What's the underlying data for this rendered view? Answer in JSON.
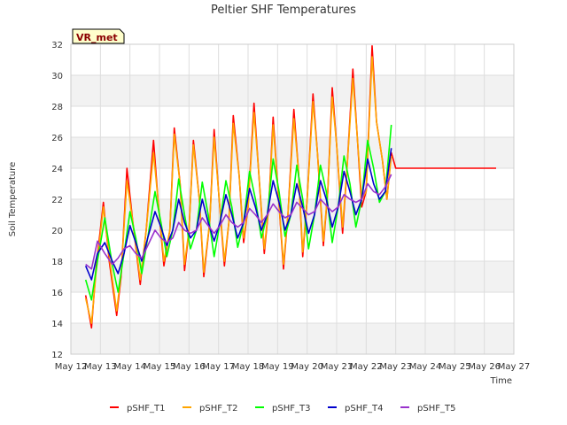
{
  "chart_data": {
    "type": "line",
    "title": "Peltier SHF Temperatures",
    "xlabel": "Time",
    "ylabel": "Soil Temperature",
    "ylim": [
      12,
      32
    ],
    "xlim": [
      12,
      27
    ],
    "yticks": [
      12,
      14,
      16,
      18,
      20,
      22,
      24,
      26,
      28,
      30,
      32
    ],
    "xticks": [
      {
        "value": 12,
        "label": "May 12"
      },
      {
        "value": 13,
        "label": "May 13"
      },
      {
        "value": 14,
        "label": "May 14"
      },
      {
        "value": 15,
        "label": "May 15"
      },
      {
        "value": 16,
        "label": "May 16"
      },
      {
        "value": 17,
        "label": "May 17"
      },
      {
        "value": 18,
        "label": "May 18"
      },
      {
        "value": 19,
        "label": "May 19"
      },
      {
        "value": 20,
        "label": "May 20"
      },
      {
        "value": 21,
        "label": "May 21"
      },
      {
        "value": 22,
        "label": "May 22"
      },
      {
        "value": 23,
        "label": "May 23"
      },
      {
        "value": 24,
        "label": "May 24"
      },
      {
        "value": 25,
        "label": "May 25"
      },
      {
        "value": 26,
        "label": "May 26"
      },
      {
        "value": 27,
        "label": "May 27"
      }
    ],
    "grid": true,
    "banded_background": true,
    "legend_position": "bottom",
    "annotation": "VR_met",
    "series": [
      {
        "name": "pSHF_T1",
        "color": "#ff0000",
        "x": [
          12.5,
          12.7,
          12.85,
          13.1,
          13.3,
          13.55,
          13.7,
          13.9,
          14.1,
          14.35,
          14.55,
          14.8,
          14.95,
          15.15,
          15.35,
          15.5,
          15.7,
          15.85,
          16.0,
          16.15,
          16.35,
          16.5,
          16.7,
          16.85,
          17.0,
          17.2,
          17.35,
          17.5,
          17.7,
          17.85,
          18.0,
          18.2,
          18.35,
          18.55,
          18.7,
          18.85,
          19.0,
          19.2,
          19.35,
          19.55,
          19.7,
          19.85,
          20.0,
          20.2,
          20.35,
          20.55,
          20.7,
          20.85,
          21.0,
          21.2,
          21.35,
          21.55,
          21.7,
          21.85,
          22.0,
          22.2,
          22.35,
          22.55,
          22.7,
          22.85,
          23.0,
          23.2,
          23.35,
          23.55,
          23.7,
          23.85,
          24.0,
          24.2,
          24.35,
          24.55,
          24.75,
          24.9,
          25.05,
          25.25,
          25.4,
          25.55,
          25.8,
          25.95,
          26.1,
          26.25,
          26.4
        ],
        "y": [
          15.8,
          13.7,
          17.5,
          21.8,
          18.0,
          14.5,
          17.0,
          24.0,
          20.5,
          16.5,
          20.0,
          25.8,
          22.0,
          17.7,
          20.0,
          26.6,
          23.0,
          17.4,
          20.0,
          25.8,
          22.0,
          17.0,
          20.5,
          26.5,
          22.5,
          17.7,
          20.5,
          27.4,
          23.5,
          19.2,
          21.5,
          28.2,
          24.0,
          18.5,
          21.5,
          27.3,
          23.0,
          17.5,
          21.0,
          27.8,
          24.0,
          18.3,
          22.0,
          28.8,
          25.0,
          19.0,
          22.5,
          29.2,
          25.5,
          19.8,
          24.0,
          30.4,
          26.0,
          21.5,
          22.5,
          31.9,
          27.0,
          24.5,
          22.0,
          25.0,
          24.0,
          24.0,
          24.0,
          24.0,
          24.0,
          24.0,
          24.0,
          24.0,
          24.0,
          24.0,
          24.0,
          24.0,
          24.0,
          24.0,
          24.0,
          24.0,
          24.0,
          24.0,
          24.0,
          24.0,
          24.0
        ]
      },
      {
        "name": "pSHF_T2",
        "color": "#ffa500",
        "x": [
          12.5,
          12.7,
          12.85,
          13.1,
          13.3,
          13.55,
          13.7,
          13.9,
          14.1,
          14.35,
          14.55,
          14.8,
          14.95,
          15.15,
          15.35,
          15.5,
          15.7,
          15.85,
          16.0,
          16.15,
          16.35,
          16.5,
          16.7,
          16.85,
          17.0,
          17.2,
          17.35,
          17.5,
          17.7,
          17.85,
          18.0,
          18.2,
          18.35,
          18.55,
          18.7,
          18.85,
          19.0,
          19.2,
          19.35,
          19.55,
          19.7,
          19.85,
          20.0,
          20.2,
          20.35,
          20.55,
          20.7,
          20.85,
          21.0,
          21.2,
          21.35,
          21.55,
          21.7,
          21.85,
          22.0,
          22.2,
          22.35,
          22.55,
          22.7,
          22.85
        ],
        "y": [
          15.6,
          14.0,
          17.2,
          21.5,
          18.3,
          14.8,
          17.2,
          23.2,
          20.5,
          16.8,
          20.0,
          25.0,
          22.0,
          18.0,
          20.0,
          26.2,
          23.0,
          17.8,
          20.0,
          25.5,
          22.0,
          17.3,
          20.5,
          26.0,
          22.5,
          18.0,
          20.5,
          26.9,
          23.5,
          19.5,
          21.5,
          27.6,
          24.0,
          18.8,
          21.5,
          26.8,
          23.0,
          17.8,
          21.0,
          27.2,
          24.0,
          18.6,
          22.0,
          28.3,
          25.0,
          19.3,
          22.5,
          28.6,
          25.5,
          20.2,
          24.0,
          29.8,
          26.0,
          22.0,
          22.5,
          31.2,
          27.0,
          24.5,
          22.0,
          24.8
        ]
      },
      {
        "name": "pSHF_T3",
        "color": "#00ff00",
        "x": [
          12.5,
          12.7,
          12.9,
          13.15,
          13.4,
          13.6,
          13.8,
          14.0,
          14.2,
          14.4,
          14.6,
          14.85,
          15.05,
          15.25,
          15.45,
          15.65,
          15.85,
          16.05,
          16.25,
          16.45,
          16.65,
          16.85,
          17.05,
          17.25,
          17.45,
          17.65,
          17.85,
          18.05,
          18.25,
          18.45,
          18.65,
          18.85,
          19.05,
          19.25,
          19.45,
          19.65,
          19.85,
          20.05,
          20.25,
          20.45,
          20.65,
          20.85,
          21.05,
          21.25,
          21.45,
          21.65,
          21.85,
          22.05,
          22.25,
          22.45,
          22.65,
          22.85
        ],
        "y": [
          16.8,
          15.5,
          18.0,
          20.8,
          17.8,
          16.0,
          18.5,
          21.2,
          19.5,
          17.2,
          19.5,
          22.5,
          20.5,
          18.3,
          20.0,
          23.3,
          21.0,
          18.8,
          20.0,
          23.1,
          21.0,
          18.3,
          20.5,
          23.2,
          21.5,
          18.9,
          20.5,
          23.8,
          22.0,
          19.5,
          21.0,
          24.6,
          22.5,
          19.6,
          21.0,
          24.2,
          22.0,
          18.8,
          21.0,
          24.2,
          22.5,
          19.2,
          21.5,
          24.8,
          23.0,
          20.2,
          22.0,
          25.8,
          24.0,
          21.8,
          22.5,
          26.8
        ]
      },
      {
        "name": "pSHF_T4",
        "color": "#0000cd",
        "x": [
          12.5,
          12.7,
          12.9,
          13.15,
          13.4,
          13.6,
          13.8,
          14.0,
          14.2,
          14.4,
          14.6,
          14.85,
          15.05,
          15.25,
          15.45,
          15.65,
          15.85,
          16.05,
          16.25,
          16.45,
          16.65,
          16.85,
          17.05,
          17.25,
          17.45,
          17.65,
          17.85,
          18.05,
          18.25,
          18.45,
          18.65,
          18.85,
          19.05,
          19.25,
          19.45,
          19.65,
          19.85,
          20.05,
          20.25,
          20.45,
          20.65,
          20.85,
          21.05,
          21.25,
          21.45,
          21.65,
          21.85,
          22.05,
          22.25,
          22.45,
          22.65,
          22.85
        ],
        "y": [
          17.7,
          16.8,
          18.5,
          19.2,
          18.0,
          17.2,
          18.5,
          20.3,
          19.2,
          18.0,
          19.5,
          21.2,
          20.2,
          19.0,
          20.0,
          22.0,
          20.5,
          19.5,
          20.0,
          22.0,
          20.5,
          19.3,
          20.5,
          22.3,
          21.0,
          19.5,
          20.5,
          22.7,
          21.5,
          20.0,
          21.0,
          23.2,
          21.8,
          20.0,
          21.0,
          23.0,
          21.5,
          19.8,
          21.0,
          23.2,
          22.0,
          20.2,
          21.5,
          23.8,
          22.5,
          21.0,
          22.0,
          24.6,
          23.0,
          22.0,
          22.5,
          25.3
        ]
      },
      {
        "name": "pSHF_T5",
        "color": "#9932cc",
        "x": [
          12.5,
          12.7,
          12.9,
          13.15,
          13.4,
          13.6,
          13.8,
          14.0,
          14.2,
          14.4,
          14.6,
          14.85,
          15.05,
          15.25,
          15.45,
          15.65,
          15.85,
          16.05,
          16.25,
          16.45,
          16.65,
          16.85,
          17.05,
          17.25,
          17.45,
          17.65,
          17.85,
          18.05,
          18.25,
          18.45,
          18.65,
          18.85,
          19.05,
          19.25,
          19.45,
          19.65,
          19.85,
          20.05,
          20.25,
          20.45,
          20.65,
          20.85,
          21.05,
          21.25,
          21.45,
          21.65,
          21.85,
          22.05,
          22.25,
          22.45,
          22.65,
          22.85
        ],
        "y": [
          17.8,
          17.5,
          19.3,
          18.5,
          17.8,
          18.2,
          18.8,
          19.0,
          18.5,
          18.2,
          19.0,
          20.0,
          19.5,
          19.2,
          19.5,
          20.5,
          20.0,
          19.8,
          20.0,
          20.8,
          20.3,
          19.8,
          20.3,
          21.0,
          20.5,
          20.2,
          20.5,
          21.4,
          21.0,
          20.5,
          21.0,
          21.7,
          21.2,
          20.8,
          21.0,
          21.8,
          21.4,
          21.0,
          21.2,
          22.0,
          21.6,
          21.2,
          21.5,
          22.3,
          22.0,
          21.8,
          22.0,
          23.0,
          22.5,
          22.3,
          22.8,
          23.6
        ]
      }
    ]
  }
}
